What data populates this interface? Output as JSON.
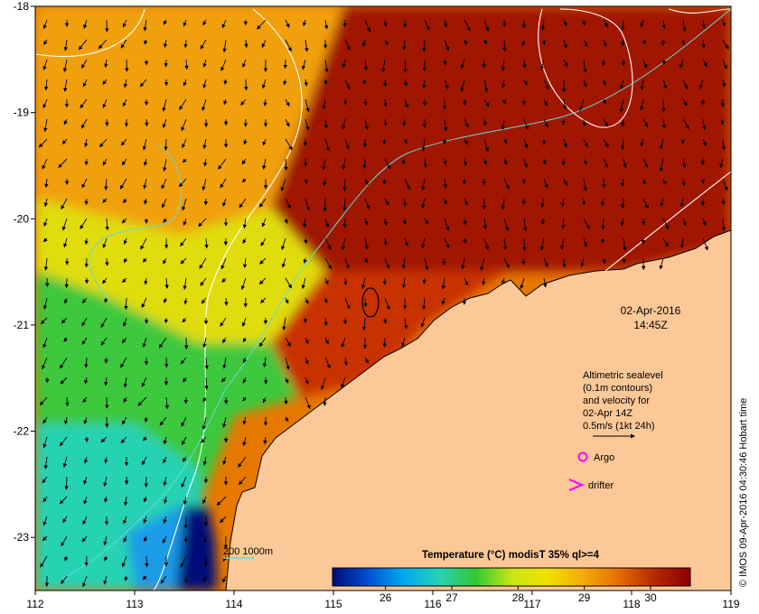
{
  "map": {
    "lon_range": [
      112,
      119
    ],
    "lat_range": [
      -23.5,
      -18
    ],
    "lon_ticks": [
      112,
      113,
      114,
      115,
      116,
      117,
      118,
      119
    ],
    "lat_ticks": [
      -18,
      -19,
      -20,
      -21,
      -22,
      -23
    ],
    "lon_tick_labels": [
      "112",
      "113",
      "114",
      "115",
      "116",
      "117",
      "118",
      "119"
    ],
    "lat_tick_labels": [
      "-18",
      "-19",
      "-20",
      "-21",
      "-22",
      "-23"
    ],
    "land_color": "#fdc897",
    "coast_color": "#000000",
    "contour_color": "#ffffff",
    "isobath_color": "#66d9d9",
    "arrow_color": "#000000"
  },
  "snapshot": {
    "date": "02-Apr-2016",
    "time": "14:45Z"
  },
  "altimetry_note": {
    "lines": [
      "Altimetric sealevel",
      "(0.1m contours)",
      "and velocity for",
      "02-Apr 14Z",
      "0.5m/s (1kt 24h)"
    ]
  },
  "legend": {
    "argo_label": "Argo",
    "argo_color": "#ff00ff",
    "drifter_label": "drifter",
    "drifter_color": "#ff00ff",
    "isobath_label": "200  1000m"
  },
  "colorbar": {
    "title": "Temperature (°C) modisT 35% ql>=4",
    "range": [
      25.2,
      30.6
    ],
    "tick_values": [
      26,
      27,
      28,
      29,
      30
    ],
    "tick_labels": [
      "26",
      "27",
      "28",
      "29",
      "30"
    ],
    "stops": [
      "#000a78",
      "#0050d2",
      "#00aaf0",
      "#28d2b4",
      "#32c832",
      "#c8e614",
      "#f0e100",
      "#f5aa0a",
      "#e66e00",
      "#b42800",
      "#8c0000"
    ]
  },
  "credit": "© IMOS 09-Apr-2016 04:30:46 Hobart time"
}
